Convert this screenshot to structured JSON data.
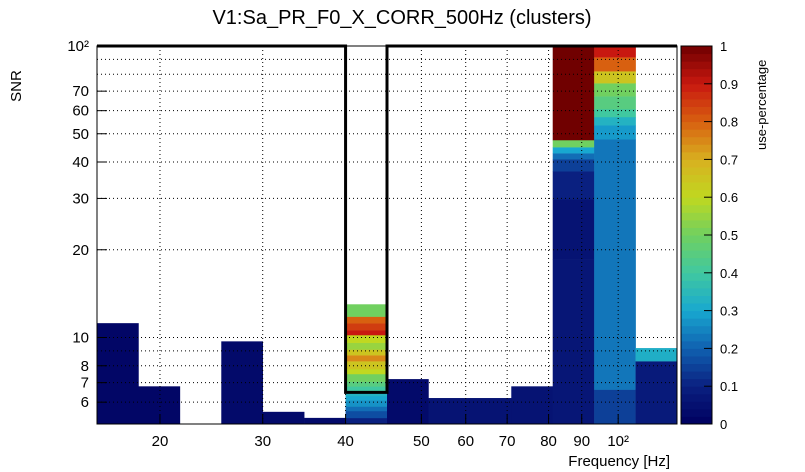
{
  "chart_data": {
    "type": "heatmap",
    "title": "V1:Sa_PR_F0_X_CORR_500Hz (clusters)",
    "xlabel": "Frequency [Hz]",
    "ylabel": "SNR",
    "zlabel": "use-percentage",
    "y_scale": "log",
    "ylim": [
      5.05,
      100
    ],
    "zlim": [
      0,
      1
    ],
    "grid": true,
    "n_bins": 14,
    "x_ticks": [
      {
        "label": "20",
        "bin_pos": 1.52
      },
      {
        "label": "30",
        "bin_pos": 4.0
      },
      {
        "label": "40",
        "bin_pos": 6.0
      },
      {
        "label": "50",
        "bin_pos": 7.83
      },
      {
        "label": "60",
        "bin_pos": 8.9
      },
      {
        "label": "70",
        "bin_pos": 9.9
      },
      {
        "label": "80",
        "bin_pos": 10.9
      },
      {
        "label": "90",
        "bin_pos": 11.7
      },
      {
        "label": "10²",
        "bin_pos": 12.58
      }
    ],
    "y_ticks": [
      {
        "label": "6",
        "value": 6
      },
      {
        "label": "7",
        "value": 7
      },
      {
        "label": "8",
        "value": 8
      },
      {
        "label": "10",
        "value": 10
      },
      {
        "label": "20",
        "value": 20
      },
      {
        "label": "30",
        "value": 30
      },
      {
        "label": "40",
        "value": 40
      },
      {
        "label": "50",
        "value": 50
      },
      {
        "label": "60",
        "value": 60
      },
      {
        "label": "70",
        "value": 70
      },
      {
        "label": "10²",
        "value": 100
      }
    ],
    "y_minor_grid": [
      9,
      80,
      90
    ],
    "z_ticks": [
      "0",
      "0.1",
      "0.2",
      "0.3",
      "0.4",
      "0.5",
      "0.6",
      "0.7",
      "0.8",
      "0.9",
      "1"
    ],
    "highlight_bin": 6,
    "columns": [
      {
        "bin": 0,
        "cells": [
          [
            5.05,
            11.2,
            0.02
          ]
        ]
      },
      {
        "bin": 1,
        "cells": [
          [
            5.05,
            6.8,
            0.02
          ]
        ]
      },
      {
        "bin": 3,
        "cells": [
          [
            5.05,
            9.7,
            0.03
          ]
        ]
      },
      {
        "bin": 4,
        "cells": [
          [
            5.05,
            5.56,
            0.03
          ]
        ]
      },
      {
        "bin": 5,
        "cells": [
          [
            5.05,
            5.3,
            0.03
          ]
        ]
      },
      {
        "bin": 6,
        "cells": [
          [
            5.05,
            5.3,
            0.1
          ],
          [
            5.3,
            5.6,
            0.17
          ],
          [
            5.6,
            5.8,
            0.22
          ],
          [
            5.8,
            6.1,
            0.27
          ],
          [
            6.1,
            6.3,
            0.3
          ],
          [
            6.3,
            6.5,
            0.33
          ],
          [
            6.5,
            6.8,
            0.4
          ],
          [
            6.8,
            7.06,
            0.45
          ],
          [
            7.06,
            7.5,
            0.5
          ],
          [
            7.5,
            7.8,
            0.6
          ],
          [
            7.8,
            8.3,
            0.65
          ],
          [
            8.3,
            8.7,
            0.75
          ],
          [
            8.7,
            9.1,
            0.65
          ],
          [
            9.1,
            9.6,
            0.55
          ],
          [
            9.6,
            10.2,
            0.6
          ],
          [
            10.2,
            10.6,
            0.9
          ],
          [
            10.6,
            11.2,
            0.85
          ],
          [
            11.2,
            11.8,
            0.8
          ],
          [
            11.8,
            13.0,
            0.5
          ]
        ]
      },
      {
        "bin": 7,
        "cells": [
          [
            5.05,
            7.2,
            0.03
          ]
        ]
      },
      {
        "bin": 8,
        "cells": [
          [
            5.05,
            6.2,
            0.06
          ]
        ]
      },
      {
        "bin": 9,
        "cells": [
          [
            5.05,
            6.2,
            0.06
          ]
        ]
      },
      {
        "bin": 10,
        "cells": [
          [
            5.05,
            6.8,
            0.06
          ]
        ]
      },
      {
        "bin": 11,
        "cells": [
          [
            5.05,
            18.5,
            0.07
          ],
          [
            18.5,
            29.8,
            0.06
          ],
          [
            29.8,
            37.2,
            0.1
          ],
          [
            37.2,
            40.9,
            0.15
          ],
          [
            40.9,
            42.9,
            0.22
          ],
          [
            42.9,
            45,
            0.3
          ],
          [
            45,
            47.6,
            0.5
          ],
          [
            47.6,
            100,
            1.0
          ]
        ]
      },
      {
        "bin": 12,
        "cells": [
          [
            5.05,
            6.63,
            0.15
          ],
          [
            6.63,
            47.9,
            0.23
          ],
          [
            47.9,
            53.5,
            0.28
          ],
          [
            53.5,
            57.1,
            0.33
          ],
          [
            57.1,
            60.8,
            0.4
          ],
          [
            60.8,
            67.3,
            0.45
          ],
          [
            67.3,
            74.6,
            0.5
          ],
          [
            74.6,
            82,
            0.65
          ],
          [
            82,
            91.6,
            0.8
          ],
          [
            91.6,
            100,
            0.9
          ]
        ]
      },
      {
        "bin": 13,
        "cells": [
          [
            5.05,
            8.3,
            0.08
          ],
          [
            8.3,
            9.2,
            0.32
          ]
        ]
      }
    ]
  }
}
